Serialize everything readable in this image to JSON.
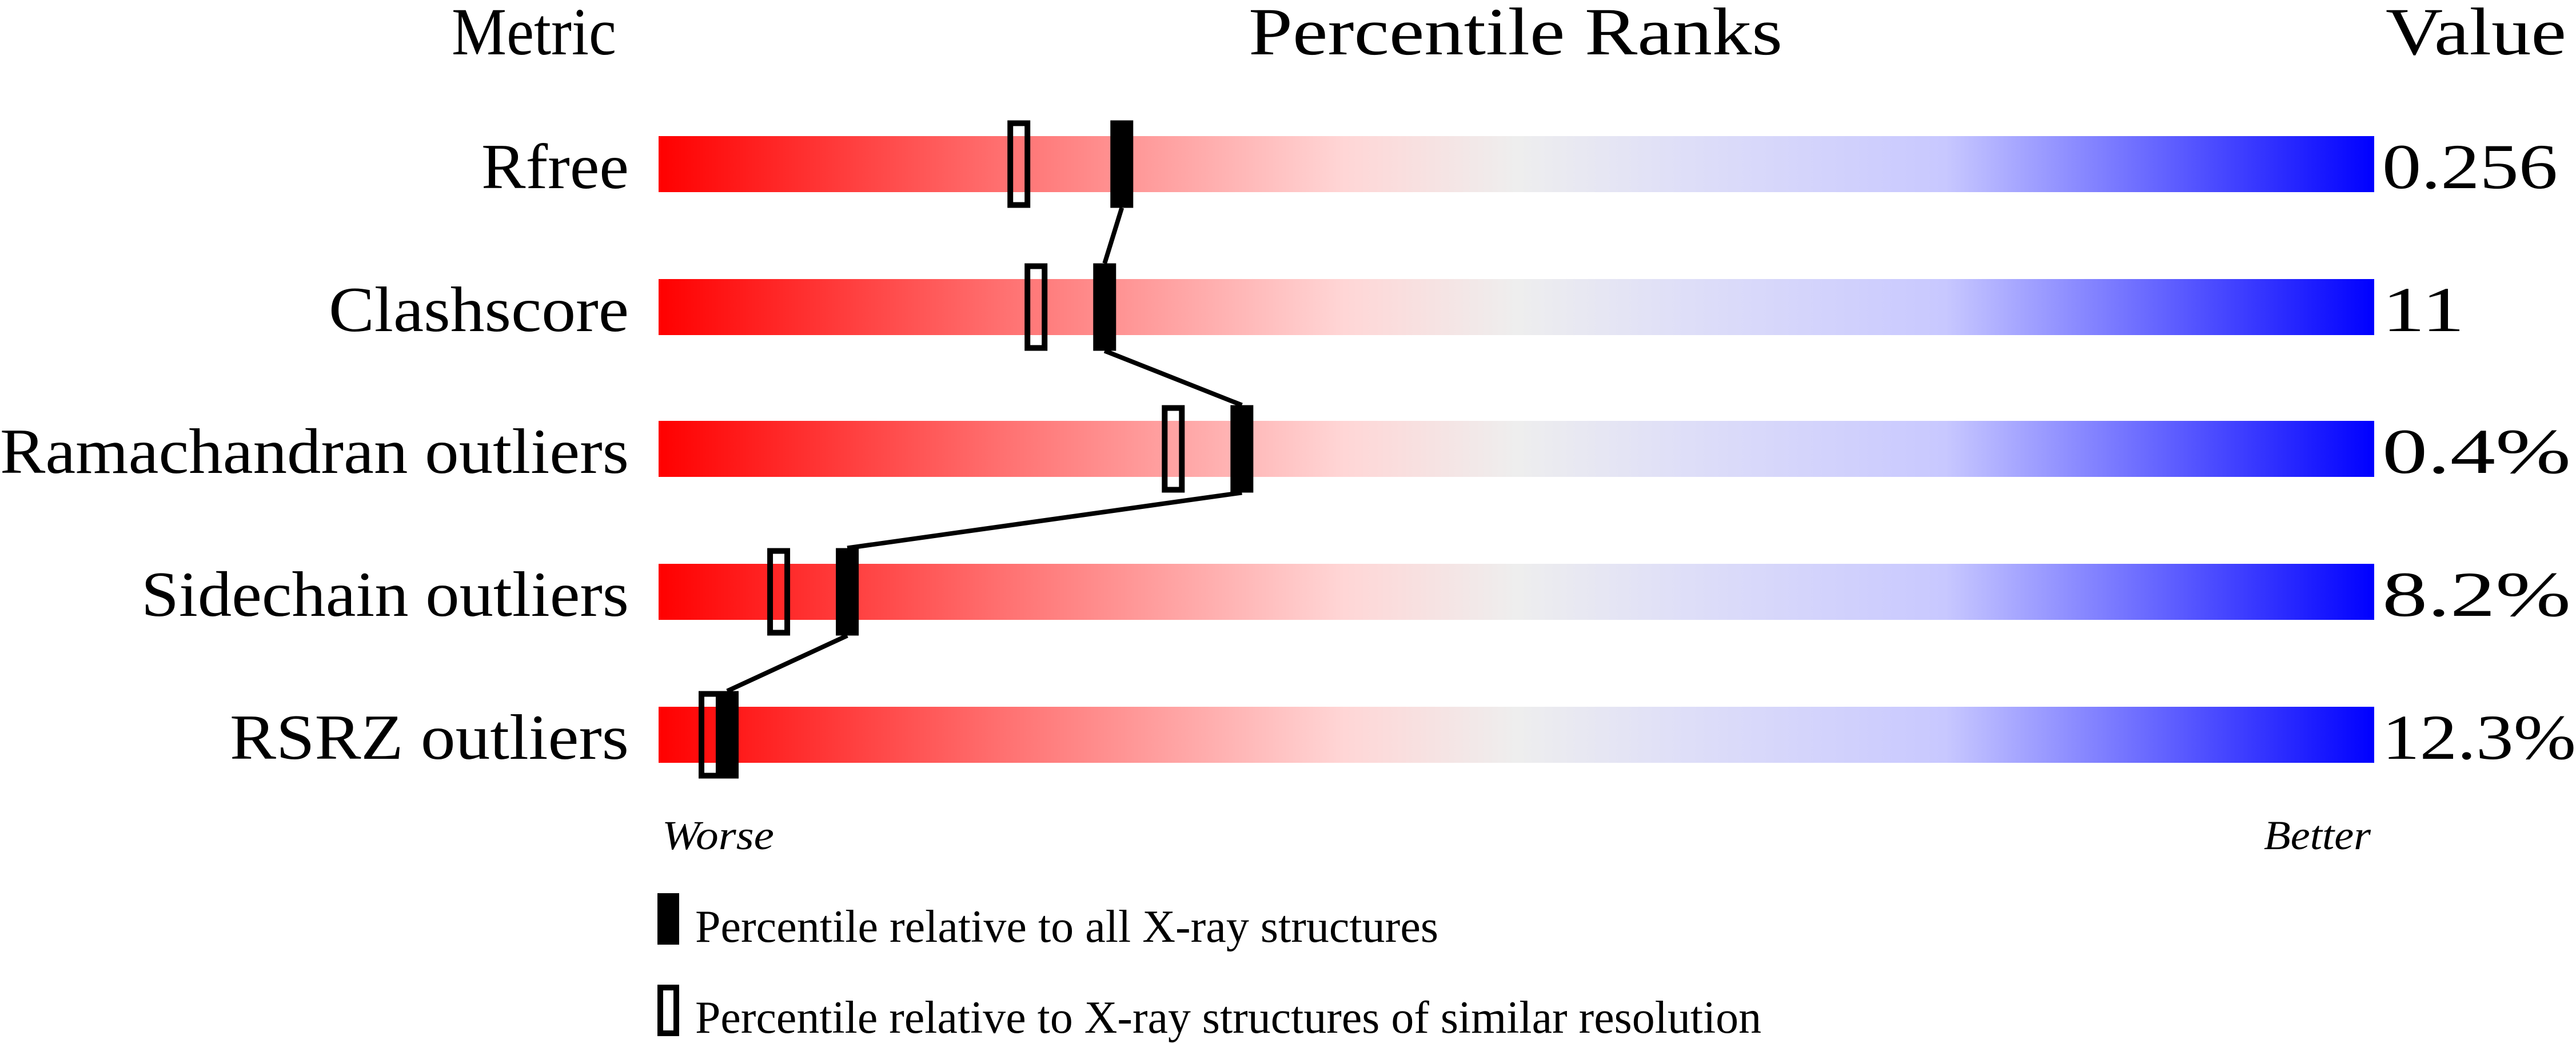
{
  "chart_data": {
    "type": "percentile-bar",
    "headers": {
      "metric": "Metric",
      "ranks": "Percentile Ranks",
      "value": "Value"
    },
    "xlim": [
      0,
      100
    ],
    "scale_labels": {
      "low": "Worse",
      "high": "Better"
    },
    "gradient_colors": [
      "#ff0000",
      "#eeeeee",
      "#0000ff"
    ],
    "rows": [
      {
        "metric": "Rfree",
        "value": "0.256",
        "percentile_all": 27,
        "percentile_similar": 21
      },
      {
        "metric": "Clashscore",
        "value": "11",
        "percentile_all": 26,
        "percentile_similar": 22
      },
      {
        "metric": "Ramachandran outliers",
        "value": "0.4%",
        "percentile_all": 34,
        "percentile_similar": 30
      },
      {
        "metric": "Sidechain outliers",
        "value": "8.2%",
        "percentile_all": 11,
        "percentile_similar": 7
      },
      {
        "metric": "RSRZ outliers",
        "value": "12.3%",
        "percentile_all": 4,
        "percentile_similar": 3
      }
    ],
    "legend": [
      {
        "marker": "filled",
        "label": "Percentile relative to all X-ray structures"
      },
      {
        "marker": "open",
        "label": "Percentile relative to X-ray structures of similar resolution"
      }
    ]
  }
}
